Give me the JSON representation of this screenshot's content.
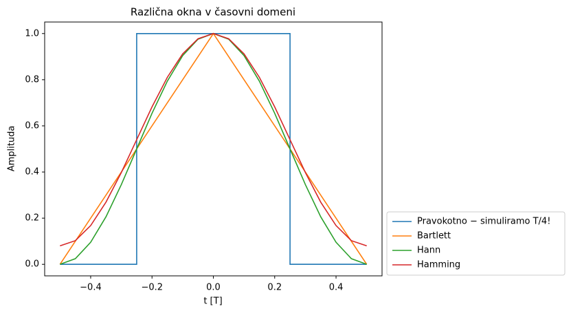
{
  "chart_data": {
    "type": "line",
    "title": "Različna okna v časovni domeni",
    "x_label": "t [T]",
    "y_label": "Amplituda",
    "xlim": [
      -0.55,
      0.55
    ],
    "ylim": [
      -0.05,
      1.05
    ],
    "xticks": [
      {
        "value": -0.4,
        "label": "−0.4"
      },
      {
        "value": -0.2,
        "label": "−0.2"
      },
      {
        "value": 0,
        "label": "0.0"
      },
      0.2,
      0.4
    ],
    "yticks": [
      {
        "value": 0,
        "label": "0.0"
      },
      0.2,
      0.4,
      0.6,
      0.8,
      {
        "value": 1,
        "label": "1.0"
      }
    ],
    "grid": false,
    "legend": "outside lower right",
    "series": [
      {
        "name": "Pravokotno − simuliramo T/4!",
        "color": "#1f77b4",
        "x": [
          -0.5,
          -0.25,
          -0.25,
          0.25,
          0.25,
          0.5
        ],
        "values": [
          0,
          0,
          1,
          1,
          0,
          0
        ]
      },
      {
        "name": "Bartlett",
        "color": "#ff7f0e",
        "x": [
          -0.5,
          0,
          0.5
        ],
        "values": [
          0,
          1,
          0
        ]
      },
      {
        "name": "Hann",
        "color": "#2ca02c",
        "x": [
          -0.5,
          -0.45,
          -0.4,
          -0.35,
          -0.3,
          -0.25,
          -0.2,
          -0.15,
          -0.1,
          -0.05,
          0,
          0.05,
          0.1,
          0.15,
          0.2,
          0.25,
          0.3,
          0.35,
          0.4,
          0.45,
          0.5
        ],
        "values": [
          0,
          0.0245,
          0.0955,
          0.2061,
          0.3455,
          0.5,
          0.6545,
          0.7939,
          0.9045,
          0.9755,
          1,
          0.9755,
          0.9045,
          0.7939,
          0.6545,
          0.5,
          0.3455,
          0.2061,
          0.0955,
          0.0245,
          0
        ]
      },
      {
        "name": "Hamming",
        "color": "#d62728",
        "x": [
          -0.5,
          -0.45,
          -0.4,
          -0.35,
          -0.3,
          -0.25,
          -0.2,
          -0.15,
          -0.1,
          -0.05,
          0,
          0.05,
          0.1,
          0.15,
          0.2,
          0.25,
          0.3,
          0.35,
          0.4,
          0.45,
          0.5
        ],
        "values": [
          0.08,
          0.1025,
          0.1679,
          0.2696,
          0.3979,
          0.54,
          0.6821,
          0.8104,
          0.9121,
          0.9775,
          1,
          0.9775,
          0.9121,
          0.8104,
          0.6821,
          0.54,
          0.3979,
          0.2696,
          0.1679,
          0.1025,
          0.08
        ]
      }
    ]
  }
}
